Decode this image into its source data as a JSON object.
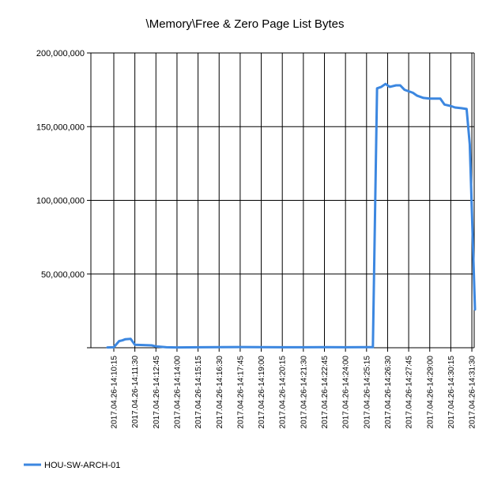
{
  "chart_data": {
    "type": "line",
    "title": "\\Memory\\Free & Zero Page List Bytes",
    "xlabel": "",
    "ylabel": "",
    "ylim": [
      0,
      200000000
    ],
    "yticks": [
      {
        "value": 0,
        "label": ""
      },
      {
        "value": 50000000,
        "label": "50,000,000"
      },
      {
        "value": 100000000,
        "label": "100,000,000"
      },
      {
        "value": 150000000,
        "label": "150,000,000"
      },
      {
        "value": 200000000,
        "label": "200,000,000"
      }
    ],
    "xticks": [
      "2017.04.26-14:10:15",
      "2017.04.26-14:11:30",
      "2017.04.26-14:12:45",
      "2017.04.26-14:14:00",
      "2017.04.26-14:15:15",
      "2017.04.26-14:16:30",
      "2017.04.26-14:17:45",
      "2017.04.26-14:19:00",
      "2017.04.26-14:20:15",
      "2017.04.26-14:21:30",
      "2017.04.26-14:22:45",
      "2017.04.26-14:24:00",
      "2017.04.26-14:25:15",
      "2017.04.26-14:26:30",
      "2017.04.26-14:27:45",
      "2017.04.26-14:29:00",
      "2017.04.26-14:30:15",
      "2017.04.26-14:31:30"
    ],
    "grid": true,
    "legend_position": "bottom-left",
    "series": [
      {
        "name": "HOU-SW-ARCH-01",
        "color": "#3c87e0",
        "points": [
          [
            -0.3,
            200000
          ],
          [
            0.0,
            300000
          ],
          [
            0.25,
            4500000
          ],
          [
            0.4,
            5000000
          ],
          [
            0.55,
            5800000
          ],
          [
            0.8,
            6000000
          ],
          [
            1.0,
            2000000
          ],
          [
            1.4,
            1800000
          ],
          [
            1.8,
            1600000
          ],
          [
            2.0,
            900000
          ],
          [
            2.5,
            300000
          ],
          [
            3.0,
            200000
          ],
          [
            4.0,
            300000
          ],
          [
            5.0,
            400000
          ],
          [
            6.0,
            500000
          ],
          [
            7.0,
            400000
          ],
          [
            8.0,
            300000
          ],
          [
            9.0,
            300000
          ],
          [
            10.0,
            400000
          ],
          [
            11.0,
            300000
          ],
          [
            12.0,
            400000
          ],
          [
            12.3,
            400000
          ],
          [
            12.5,
            176000000
          ],
          [
            12.7,
            177000000
          ],
          [
            12.9,
            179000000
          ],
          [
            13.1,
            177000000
          ],
          [
            13.4,
            178000000
          ],
          [
            13.6,
            178000000
          ],
          [
            13.8,
            175000000
          ],
          [
            14.0,
            174000000
          ],
          [
            14.2,
            173000000
          ],
          [
            14.4,
            171000000
          ],
          [
            14.7,
            169500000
          ],
          [
            15.0,
            169000000
          ],
          [
            15.5,
            169000000
          ],
          [
            15.7,
            165000000
          ],
          [
            16.0,
            164000000
          ],
          [
            16.2,
            163000000
          ],
          [
            16.5,
            162500000
          ],
          [
            16.75,
            162000000
          ],
          [
            16.9,
            138000000
          ],
          [
            17.15,
            26000000
          ]
        ]
      }
    ]
  }
}
